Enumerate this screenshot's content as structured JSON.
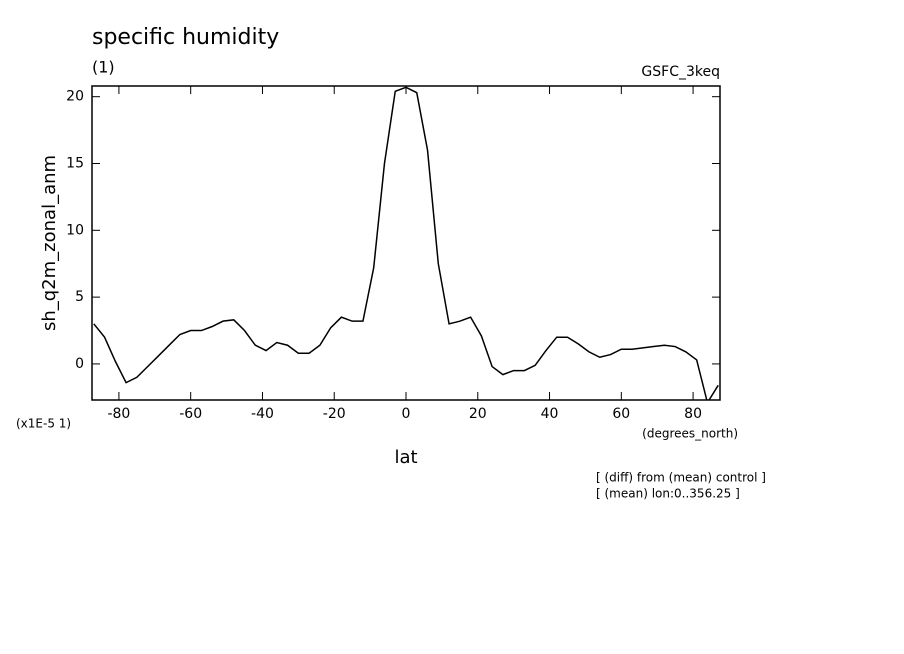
{
  "chart_data": {
    "type": "line",
    "title": "specific humidity",
    "subtitle": "(1)",
    "source": "GSFC_3keq",
    "y_label": "sh_q2m_zonal_anm",
    "y_scale_label": "(x1E-5 1)",
    "x_units": "(degrees_north)",
    "x_label": "lat",
    "notes": [
      "[ (diff) from (mean) control ]",
      "[ (mean) lon:0..356.25 ]"
    ],
    "x": [
      -87,
      -84,
      -81,
      -78,
      -75,
      -72,
      -69,
      -66,
      -63,
      -60,
      -57,
      -54,
      -51,
      -48,
      -45,
      -42,
      -39,
      -36,
      -33,
      -30,
      -27,
      -24,
      -21,
      -18,
      -15,
      -12,
      -9,
      -6,
      -3,
      0,
      3,
      6,
      9,
      12,
      15,
      18,
      21,
      24,
      27,
      30,
      33,
      36,
      39,
      42,
      45,
      48,
      51,
      54,
      57,
      60,
      63,
      66,
      69,
      72,
      75,
      78,
      81,
      84,
      87
    ],
    "series": [
      {
        "name": "sh_q2m_zonal_anm",
        "color": "#000000",
        "values": [
          3.0,
          2.0,
          0.2,
          -1.4,
          -1.0,
          -0.2,
          0.6,
          1.4,
          2.2,
          2.5,
          2.5,
          2.8,
          3.2,
          3.3,
          2.5,
          1.4,
          1.0,
          1.6,
          1.4,
          0.8,
          0.8,
          1.4,
          2.7,
          3.5,
          3.2,
          3.2,
          7.2,
          15,
          20.4,
          20.7,
          20.3,
          16,
          7.5,
          3.0,
          3.2,
          3.5,
          2.1,
          -0.2,
          -0.8,
          -0.5,
          -0.5,
          -0.1,
          1.0,
          2.0,
          2.0,
          1.5,
          0.9,
          0.5,
          0.7,
          1.1,
          1.1,
          1.2,
          1.3,
          1.4,
          1.3,
          0.9,
          0.3,
          -2.9,
          -1.6
        ]
      }
    ],
    "xlim": [
      -87.5,
      87.5
    ],
    "xticks": [
      -80,
      -60,
      -40,
      -20,
      0,
      20,
      40,
      60,
      80
    ],
    "ylim": [
      -2.7,
      20.8
    ],
    "yticks": [
      0,
      5,
      10,
      15,
      20
    ]
  }
}
